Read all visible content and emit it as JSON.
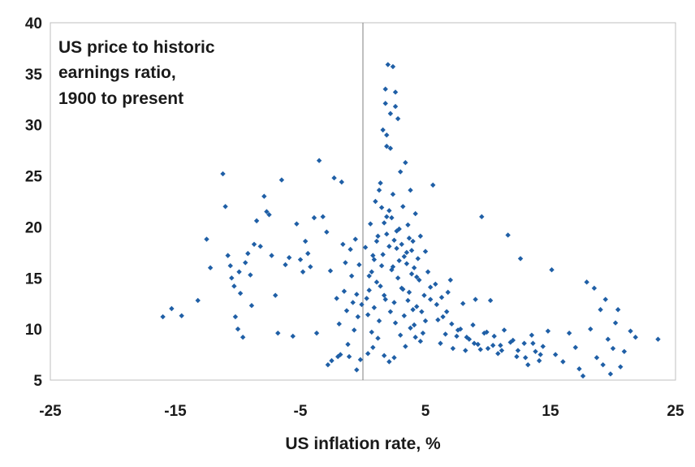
{
  "chart_data": {
    "type": "scatter",
    "title": "",
    "annotation": [
      "US price to historic",
      "earnings ratio,",
      "1900 to present"
    ],
    "xlabel": "US inflation rate, %",
    "ylabel": "",
    "xlim": [
      -25,
      25
    ],
    "ylim": [
      5,
      40
    ],
    "xticks": [
      "-25",
      "-15",
      "-5",
      "5",
      "15",
      "25"
    ],
    "yticks": [
      "5",
      "10",
      "15",
      "20",
      "25",
      "30",
      "35",
      "40"
    ],
    "grid": false,
    "legend": "none",
    "marker_color": "#1f5fa6",
    "reference_line_x": 0,
    "series": [
      {
        "points": [
          [
            -16,
            11.2
          ],
          [
            -15.3,
            12.0
          ],
          [
            -14.5,
            11.3
          ],
          [
            -13.2,
            12.8
          ],
          [
            -12.5,
            18.8
          ],
          [
            -12.2,
            16.0
          ],
          [
            -11.2,
            25.2
          ],
          [
            -11.0,
            22.0
          ],
          [
            -10.8,
            17.2
          ],
          [
            -10.6,
            16.2
          ],
          [
            -10.5,
            15.0
          ],
          [
            -10.3,
            14.2
          ],
          [
            -10.2,
            11.2
          ],
          [
            -10.0,
            10.0
          ],
          [
            -9.9,
            15.6
          ],
          [
            -9.8,
            13.5
          ],
          [
            -9.6,
            9.2
          ],
          [
            -9.4,
            16.5
          ],
          [
            -9.2,
            17.4
          ],
          [
            -9.0,
            15.3
          ],
          [
            -8.9,
            12.3
          ],
          [
            -8.7,
            18.3
          ],
          [
            -8.5,
            20.6
          ],
          [
            -8.2,
            18.1
          ],
          [
            -7.9,
            23.0
          ],
          [
            -7.7,
            21.5
          ],
          [
            -7.5,
            21.2
          ],
          [
            -7.3,
            17.2
          ],
          [
            -7.0,
            13.3
          ],
          [
            -6.8,
            9.6
          ],
          [
            -6.5,
            24.6
          ],
          [
            -6.2,
            16.3
          ],
          [
            -5.9,
            17.0
          ],
          [
            -5.6,
            9.3
          ],
          [
            -5.3,
            20.3
          ],
          [
            -5.0,
            16.8
          ],
          [
            -4.8,
            15.6
          ],
          [
            -4.6,
            18.6
          ],
          [
            -4.4,
            17.4
          ],
          [
            -4.2,
            16.1
          ],
          [
            -3.9,
            20.9
          ],
          [
            -3.7,
            9.6
          ],
          [
            -3.5,
            26.5
          ],
          [
            -3.2,
            21.0
          ],
          [
            -2.9,
            19.5
          ],
          [
            -2.6,
            15.7
          ],
          [
            -2.3,
            24.8
          ],
          [
            -2.1,
            13.0
          ],
          [
            -1.9,
            10.5
          ],
          [
            -1.7,
            24.4
          ],
          [
            -1.6,
            18.3
          ],
          [
            -1.5,
            13.7
          ],
          [
            -1.4,
            16.5
          ],
          [
            -1.3,
            11.8
          ],
          [
            -1.2,
            8.5
          ],
          [
            -1.1,
            7.3
          ],
          [
            -1.0,
            17.8
          ],
          [
            -0.9,
            15.2
          ],
          [
            -0.8,
            12.6
          ],
          [
            -0.7,
            9.9
          ],
          [
            -0.6,
            18.8
          ],
          [
            -0.5,
            13.4
          ],
          [
            -0.4,
            11.2
          ],
          [
            -0.3,
            16.3
          ],
          [
            -0.2,
            7.0
          ],
          [
            -0.1,
            12.4
          ],
          [
            -2.8,
            6.5
          ],
          [
            -2.5,
            6.9
          ],
          [
            -2.0,
            7.3
          ],
          [
            -1.8,
            7.5
          ],
          [
            -0.5,
            6.0
          ],
          [
            0.2,
            18.0
          ],
          [
            0.3,
            13.0
          ],
          [
            0.4,
            11.4
          ],
          [
            0.5,
            15.2
          ],
          [
            0.6,
            20.3
          ],
          [
            0.7,
            9.7
          ],
          [
            0.8,
            17.2
          ],
          [
            0.9,
            12.1
          ],
          [
            1.0,
            22.5
          ],
          [
            1.1,
            14.6
          ],
          [
            1.2,
            19.1
          ],
          [
            1.3,
            10.8
          ],
          [
            1.4,
            24.3
          ],
          [
            1.5,
            16.2
          ],
          [
            1.6,
            29.5
          ],
          [
            1.7,
            13.3
          ],
          [
            1.8,
            32.1
          ],
          [
            1.9,
            21.0
          ],
          [
            2.0,
            35.9
          ],
          [
            2.1,
            18.1
          ],
          [
            2.2,
            27.7
          ],
          [
            2.3,
            15.8
          ],
          [
            2.4,
            23.2
          ],
          [
            2.5,
            12.6
          ],
          [
            2.6,
            33.2
          ],
          [
            2.7,
            19.6
          ],
          [
            2.8,
            30.6
          ],
          [
            2.9,
            16.7
          ],
          [
            3.0,
            25.4
          ],
          [
            3.1,
            14.0
          ],
          [
            3.2,
            22.0
          ],
          [
            3.3,
            11.3
          ],
          [
            3.4,
            26.3
          ],
          [
            3.5,
            17.5
          ],
          [
            3.6,
            20.2
          ],
          [
            3.7,
            13.6
          ],
          [
            3.8,
            23.6
          ],
          [
            3.9,
            15.4
          ],
          [
            4.0,
            18.6
          ],
          [
            4.1,
            10.4
          ],
          [
            4.2,
            21.3
          ],
          [
            4.3,
            12.2
          ],
          [
            4.4,
            16.9
          ],
          [
            4.5,
            14.8
          ],
          [
            4.6,
            19.1
          ],
          [
            4.7,
            11.7
          ],
          [
            4.8,
            9.6
          ],
          [
            4.9,
            13.3
          ],
          [
            5.0,
            17.6
          ],
          [
            5.2,
            15.6
          ],
          [
            5.4,
            12.9
          ],
          [
            5.6,
            24.1
          ],
          [
            5.8,
            14.4
          ],
          [
            6.0,
            10.9
          ],
          [
            6.2,
            8.6
          ],
          [
            6.4,
            11.2
          ],
          [
            6.6,
            9.5
          ],
          [
            6.8,
            13.6
          ],
          [
            7.0,
            14.8
          ],
          [
            7.2,
            8.1
          ],
          [
            7.5,
            9.3
          ],
          [
            7.8,
            10.0
          ],
          [
            8.0,
            12.5
          ],
          [
            8.2,
            7.9
          ],
          [
            8.5,
            9.0
          ],
          [
            8.8,
            10.4
          ],
          [
            9.0,
            12.9
          ],
          [
            9.2,
            8.5
          ],
          [
            9.5,
            21.0
          ],
          [
            9.7,
            9.6
          ],
          [
            10.0,
            8.1
          ],
          [
            10.2,
            12.8
          ],
          [
            10.5,
            9.3
          ],
          [
            10.8,
            7.6
          ],
          [
            11.0,
            8.4
          ],
          [
            11.3,
            9.9
          ],
          [
            11.6,
            19.2
          ],
          [
            12.0,
            8.9
          ],
          [
            12.3,
            7.3
          ],
          [
            12.6,
            16.9
          ],
          [
            12.9,
            8.6
          ],
          [
            13.2,
            6.5
          ],
          [
            13.5,
            9.4
          ],
          [
            13.8,
            7.8
          ],
          [
            14.1,
            6.9
          ],
          [
            14.4,
            8.3
          ],
          [
            14.8,
            9.8
          ],
          [
            15.1,
            15.8
          ],
          [
            15.4,
            7.5
          ],
          [
            16.0,
            6.8
          ],
          [
            16.5,
            9.6
          ],
          [
            17.0,
            8.2
          ],
          [
            17.3,
            6.1
          ],
          [
            17.6,
            5.4
          ],
          [
            17.9,
            14.6
          ],
          [
            18.2,
            10.0
          ],
          [
            18.5,
            14.0
          ],
          [
            18.7,
            7.2
          ],
          [
            19.0,
            11.9
          ],
          [
            19.2,
            6.5
          ],
          [
            19.4,
            12.9
          ],
          [
            19.6,
            9.0
          ],
          [
            19.8,
            5.6
          ],
          [
            20.0,
            8.1
          ],
          [
            20.2,
            10.6
          ],
          [
            20.4,
            11.9
          ],
          [
            20.6,
            6.3
          ],
          [
            20.9,
            7.8
          ],
          [
            21.4,
            9.8
          ],
          [
            21.8,
            9.2
          ],
          [
            23.6,
            9.0
          ],
          [
            1.3,
            23.6
          ],
          [
            1.5,
            21.9
          ],
          [
            1.7,
            20.4
          ],
          [
            1.9,
            19.3
          ],
          [
            2.1,
            21.6
          ],
          [
            2.3,
            20.9
          ],
          [
            2.5,
            18.7
          ],
          [
            2.7,
            17.9
          ],
          [
            2.9,
            19.8
          ],
          [
            3.1,
            18.3
          ],
          [
            3.3,
            17.1
          ],
          [
            3.5,
            16.4
          ],
          [
            3.7,
            18.9
          ],
          [
            3.9,
            17.7
          ],
          [
            4.1,
            16.0
          ],
          [
            4.3,
            15.1
          ],
          [
            1.1,
            18.6
          ],
          [
            0.9,
            16.8
          ],
          [
            0.7,
            15.6
          ],
          [
            0.5,
            13.8
          ],
          [
            1.6,
            17.3
          ],
          [
            2.4,
            16.1
          ],
          [
            2.8,
            15.0
          ],
          [
            3.2,
            13.9
          ],
          [
            3.6,
            12.8
          ],
          [
            4.0,
            11.9
          ],
          [
            1.4,
            14.2
          ],
          [
            1.8,
            12.9
          ],
          [
            2.2,
            11.7
          ],
          [
            2.6,
            10.6
          ],
          [
            3.0,
            9.4
          ],
          [
            3.4,
            8.3
          ],
          [
            3.8,
            10.1
          ],
          [
            4.2,
            9.2
          ],
          [
            4.6,
            8.8
          ],
          [
            5.0,
            10.8
          ],
          [
            1.2,
            9.1
          ],
          [
            0.8,
            8.2
          ],
          [
            0.4,
            7.6
          ],
          [
            1.7,
            7.4
          ],
          [
            2.1,
            6.8
          ],
          [
            2.5,
            7.2
          ],
          [
            1.9,
            29.0
          ],
          [
            2.2,
            31.1
          ],
          [
            2.6,
            31.8
          ],
          [
            1.8,
            33.5
          ],
          [
            2.4,
            35.7
          ],
          [
            1.9,
            27.9
          ],
          [
            5.4,
            14.1
          ],
          [
            5.9,
            12.4
          ],
          [
            6.3,
            13.1
          ],
          [
            6.7,
            11.7
          ],
          [
            7.1,
            10.5
          ],
          [
            7.6,
            9.9
          ],
          [
            8.3,
            9.2
          ],
          [
            8.9,
            8.6
          ],
          [
            9.4,
            8.0
          ],
          [
            9.9,
            9.7
          ],
          [
            10.4,
            8.4
          ],
          [
            11.1,
            7.9
          ],
          [
            11.8,
            8.7
          ],
          [
            12.4,
            7.9
          ],
          [
            13.0,
            7.2
          ],
          [
            13.6,
            8.6
          ],
          [
            14.2,
            7.5
          ]
        ]
      }
    ]
  }
}
